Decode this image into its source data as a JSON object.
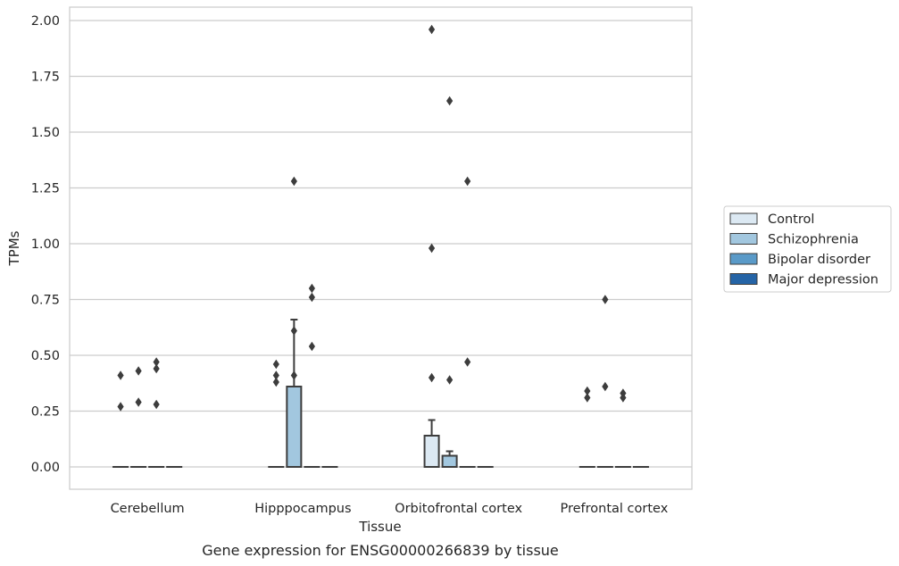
{
  "chart_data": {
    "type": "box",
    "xlabel": "Tissue",
    "ylabel": "TPMs",
    "caption": "Gene expression for ENSG00000266839 by tissue",
    "ylim": [
      -0.1,
      2.06
    ],
    "yticks": [
      "0.00",
      "0.25",
      "0.50",
      "0.75",
      "1.00",
      "1.25",
      "1.50",
      "1.75",
      "2.00"
    ],
    "grid": true,
    "legend_position": "right",
    "categories": [
      "Cerebellum",
      "Hipppocampus",
      "Orbitofrontal cortex",
      "Prefrontal cortex"
    ],
    "series": [
      {
        "name": "Control",
        "color": "#dce9f3"
      },
      {
        "name": "Schizophrenia",
        "color": "#a2c7df"
      },
      {
        "name": "Bipolar disorder",
        "color": "#5a9ac8"
      },
      {
        "name": "Major depression",
        "color": "#2564a6"
      }
    ],
    "boxes": [
      {
        "category": 0,
        "series": 0,
        "q1": 0,
        "median": 0,
        "q3": 0,
        "whisker_low": 0,
        "whisker_high": 0,
        "outliers": [
          0.41,
          0.27
        ]
      },
      {
        "category": 0,
        "series": 1,
        "q1": 0,
        "median": 0,
        "q3": 0,
        "whisker_low": 0,
        "whisker_high": 0,
        "outliers": [
          0.43,
          0.29
        ]
      },
      {
        "category": 0,
        "series": 2,
        "q1": 0,
        "median": 0,
        "q3": 0,
        "whisker_low": 0,
        "whisker_high": 0,
        "outliers": [
          0.47,
          0.44,
          0.28
        ]
      },
      {
        "category": 0,
        "series": 3,
        "q1": 0,
        "median": 0,
        "q3": 0,
        "whisker_low": 0,
        "whisker_high": 0,
        "outliers": []
      },
      {
        "category": 1,
        "series": 0,
        "q1": 0,
        "median": 0,
        "q3": 0,
        "whisker_low": 0,
        "whisker_high": 0,
        "outliers": [
          0.46,
          0.41,
          0.38
        ]
      },
      {
        "category": 1,
        "series": 1,
        "q1": 0,
        "median": 0,
        "q3": 0.36,
        "whisker_low": 0,
        "whisker_high": 0.66,
        "outliers": [
          1.28,
          0.61,
          0.41
        ]
      },
      {
        "category": 1,
        "series": 2,
        "q1": 0,
        "median": 0,
        "q3": 0,
        "whisker_low": 0,
        "whisker_high": 0,
        "outliers": [
          0.8,
          0.76,
          0.54
        ]
      },
      {
        "category": 1,
        "series": 3,
        "q1": 0,
        "median": 0,
        "q3": 0,
        "whisker_low": 0,
        "whisker_high": 0,
        "outliers": []
      },
      {
        "category": 2,
        "series": 0,
        "q1": 0,
        "median": 0,
        "q3": 0.14,
        "whisker_low": 0,
        "whisker_high": 0.21,
        "outliers": [
          1.96,
          0.98,
          0.4
        ]
      },
      {
        "category": 2,
        "series": 1,
        "q1": 0,
        "median": 0,
        "q3": 0.05,
        "whisker_low": 0,
        "whisker_high": 0.07,
        "outliers": [
          1.64,
          0.39
        ]
      },
      {
        "category": 2,
        "series": 2,
        "q1": 0,
        "median": 0,
        "q3": 0,
        "whisker_low": 0,
        "whisker_high": 0,
        "outliers": [
          1.28,
          0.47
        ]
      },
      {
        "category": 2,
        "series": 3,
        "q1": 0,
        "median": 0,
        "q3": 0,
        "whisker_low": 0,
        "whisker_high": 0,
        "outliers": []
      },
      {
        "category": 3,
        "series": 0,
        "q1": 0,
        "median": 0,
        "q3": 0,
        "whisker_low": 0,
        "whisker_high": 0,
        "outliers": [
          0.34,
          0.31
        ]
      },
      {
        "category": 3,
        "series": 1,
        "q1": 0,
        "median": 0,
        "q3": 0,
        "whisker_low": 0,
        "whisker_high": 0,
        "outliers": [
          0.75,
          0.36
        ]
      },
      {
        "category": 3,
        "series": 2,
        "q1": 0,
        "median": 0,
        "q3": 0,
        "whisker_low": 0,
        "whisker_high": 0,
        "outliers": [
          0.33,
          0.31
        ]
      },
      {
        "category": 3,
        "series": 3,
        "q1": 0,
        "median": 0,
        "q3": 0,
        "whisker_low": 0,
        "whisker_high": 0,
        "outliers": []
      }
    ]
  }
}
